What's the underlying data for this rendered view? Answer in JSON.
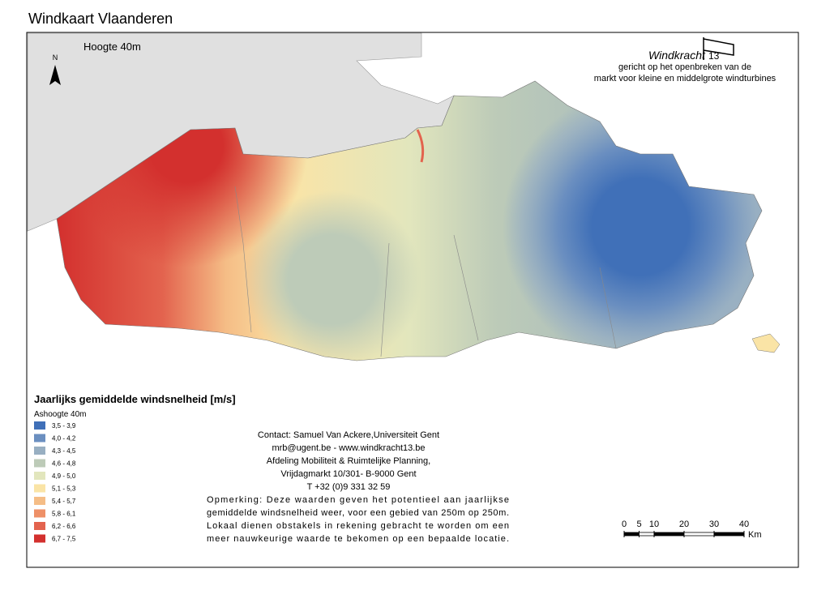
{
  "title": "Windkaart Vlaanderen",
  "height_label": "Hoogte 40m",
  "north": "N",
  "logo": {
    "name": "Windkracht",
    "number": "13",
    "lines": [
      "gericht op het openbreken van de",
      "markt voor kleine en middelgrote windturbines"
    ]
  },
  "legend": {
    "title": "Jaarlijks gemiddelde windsnelheid [m/s]",
    "subtitle": "Ashoogte 40m",
    "classes": [
      {
        "label": "3,5 - 3,9",
        "color": "#4070b8"
      },
      {
        "label": "4,0 - 4,2",
        "color": "#6b8fc0"
      },
      {
        "label": "4,3 - 4,5",
        "color": "#98afc2"
      },
      {
        "label": "4,6 - 4,8",
        "color": "#bdcbb8"
      },
      {
        "label": "4,9 - 5,0",
        "color": "#e2e6bd"
      },
      {
        "label": "5,1 - 5,3",
        "color": "#fae4a6"
      },
      {
        "label": "5,4 - 5,7",
        "color": "#f5bd86"
      },
      {
        "label": "5,8 - 6,1",
        "color": "#ee9067"
      },
      {
        "label": "6,2 - 6,6",
        "color": "#e3634e"
      },
      {
        "label": "6,7 - 7,5",
        "color": "#d3302e"
      }
    ]
  },
  "contact": [
    "Contact: Samuel Van Ackere,Universiteit Gent",
    "mrb@ugent.be - www.windkracht13.be",
    "Afdeling Mobiliteit & Ruimtelijke Planning,",
    "Vrijdagmarkt 10/301- B-9000 Gent",
    "T +32 (0)9 331 32 59"
  ],
  "remark": [
    "Opmerking: Deze waarden geven het potentieel aan jaarlijkse",
    "gemiddelde windsnelheid weer, voor een gebied van 250m op 250m.",
    "Lokaal dienen obstakels in rekening gebracht te worden om een",
    "meer nauwkeurige waarde te bekomen op een bepaalde locatie."
  ],
  "scale": {
    "ticks": [
      0,
      5,
      10,
      20,
      30,
      40
    ],
    "unit": "Km"
  }
}
